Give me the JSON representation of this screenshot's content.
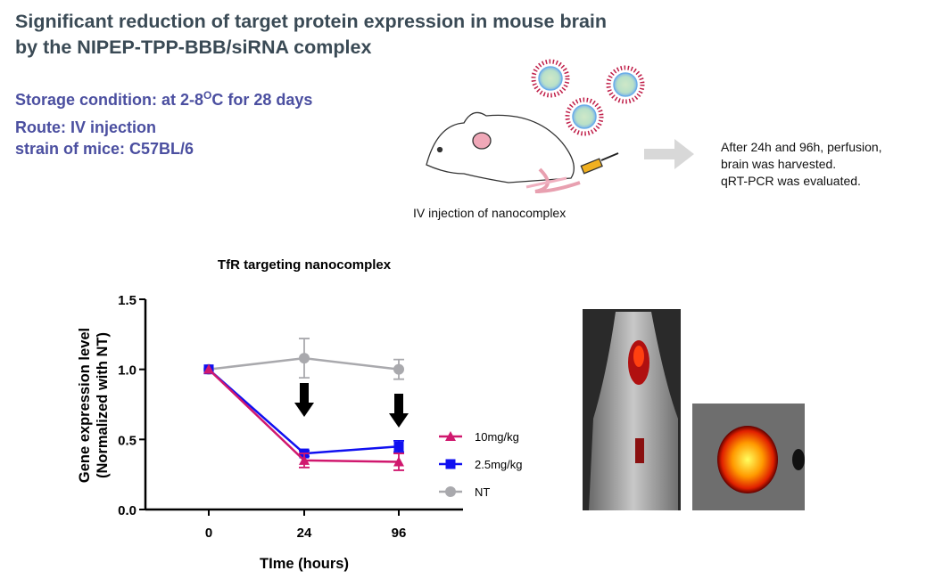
{
  "slide": {
    "title_line1": "Significant reduction of target protein expression in mouse brain",
    "title_line2": "by the NIPEP-TPP-BBB/siRNA complex",
    "storage_prefix": "Storage condition: at  2-8",
    "storage_sup": "O",
    "storage_suffix": "C for 28 days",
    "route": "Route: IV injection",
    "strain": "strain of mice: C57BL/6",
    "injection_caption": "IV injection of nanocomplex",
    "process_lines": [
      "After 24h and 96h, perfusion,",
      "brain was harvested.",
      "qRT-PCR was evaluated."
    ]
  },
  "chart_data": {
    "type": "line",
    "title": "TfR targeting nanocomplex",
    "xlabel": "TIme (hours)",
    "ylabel_line1": "Gene expression level",
    "ylabel_line2": "(Normalized with NT)",
    "categories": [
      "0",
      "24",
      "96"
    ],
    "ylim": [
      0,
      1.5
    ],
    "yticks": [
      "0.0",
      "0.5",
      "1.0",
      "1.5"
    ],
    "legend_position": "right",
    "series": [
      {
        "name": "10mg/kg",
        "color": "#d0186e",
        "marker": "triangle",
        "values": [
          1.0,
          0.35,
          0.34
        ],
        "errors": [
          0,
          0.05,
          0.06
        ]
      },
      {
        "name": "2.5mg/kg",
        "color": "#1010f0",
        "marker": "square",
        "values": [
          1.0,
          0.4,
          0.45
        ],
        "errors": [
          0,
          0.02,
          0.04
        ]
      },
      {
        "name": "NT",
        "color": "#a9a9ad",
        "marker": "circle",
        "values": [
          1.0,
          1.08,
          1.0
        ],
        "errors": [
          0,
          0.14,
          0.07
        ]
      }
    ],
    "annotations": [
      "down-arrow at 24",
      "down-arrow at 96"
    ]
  }
}
